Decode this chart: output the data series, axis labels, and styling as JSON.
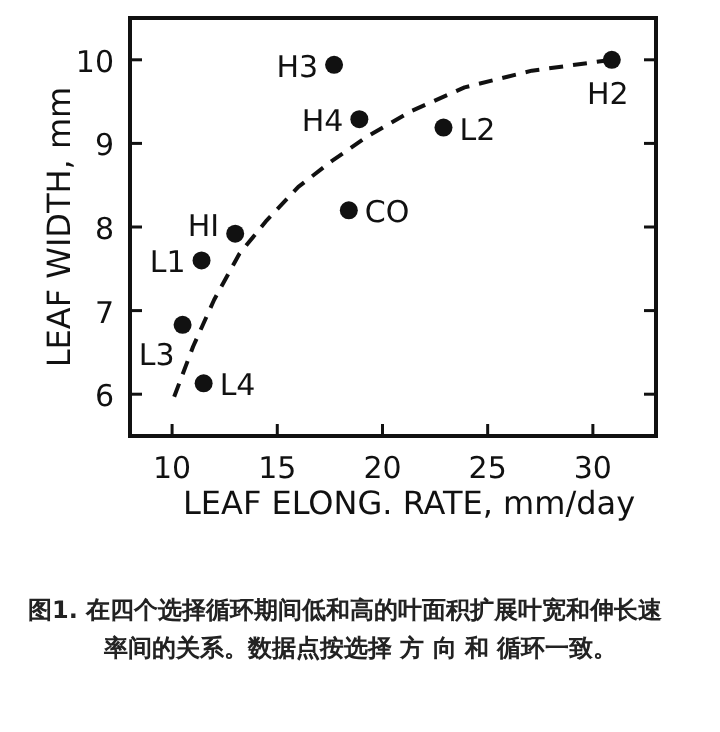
{
  "chart_data": {
    "type": "scatter",
    "xlabel": "LEAF ELONG. RATE, mm/day",
    "ylabel": "LEAF WIDTH, mm",
    "xlim": [
      8,
      33
    ],
    "ylim": [
      5.5,
      10.5
    ],
    "xticks": [
      10,
      15,
      20,
      25,
      30
    ],
    "yticks": [
      6,
      7,
      8,
      9,
      10
    ],
    "series": [
      {
        "color": "#111111",
        "marker": "circle",
        "x": [
          17.7,
          30.9,
          18.9,
          22.9,
          18.4,
          13.0,
          11.4,
          10.5,
          11.5
        ],
        "values": [
          9.94,
          10.0,
          9.29,
          9.19,
          8.2,
          7.92,
          7.6,
          6.83,
          6.13
        ],
        "value_labels": [
          "H3",
          "H2",
          "H4",
          "L2",
          "CO",
          "HI",
          "L1",
          "L3",
          "L4"
        ]
      },
      {
        "type": "line",
        "color": "#111111",
        "line_style": "dashed",
        "x": [
          10.1,
          11.0,
          12.0,
          13.2,
          14.5,
          16.0,
          17.6,
          19.2,
          21.4,
          23.9,
          27.1,
          30.9
        ],
        "values": [
          5.97,
          6.57,
          7.13,
          7.68,
          8.08,
          8.48,
          8.79,
          9.07,
          9.39,
          9.67,
          9.87,
          10.0
        ]
      }
    ],
    "annotations": [
      "图1.  在四个选择循环期间低和高的叶面积扩展叶宽和伸长速率间的关系。数据点按选择 方 向 和 循环一致。"
    ]
  }
}
